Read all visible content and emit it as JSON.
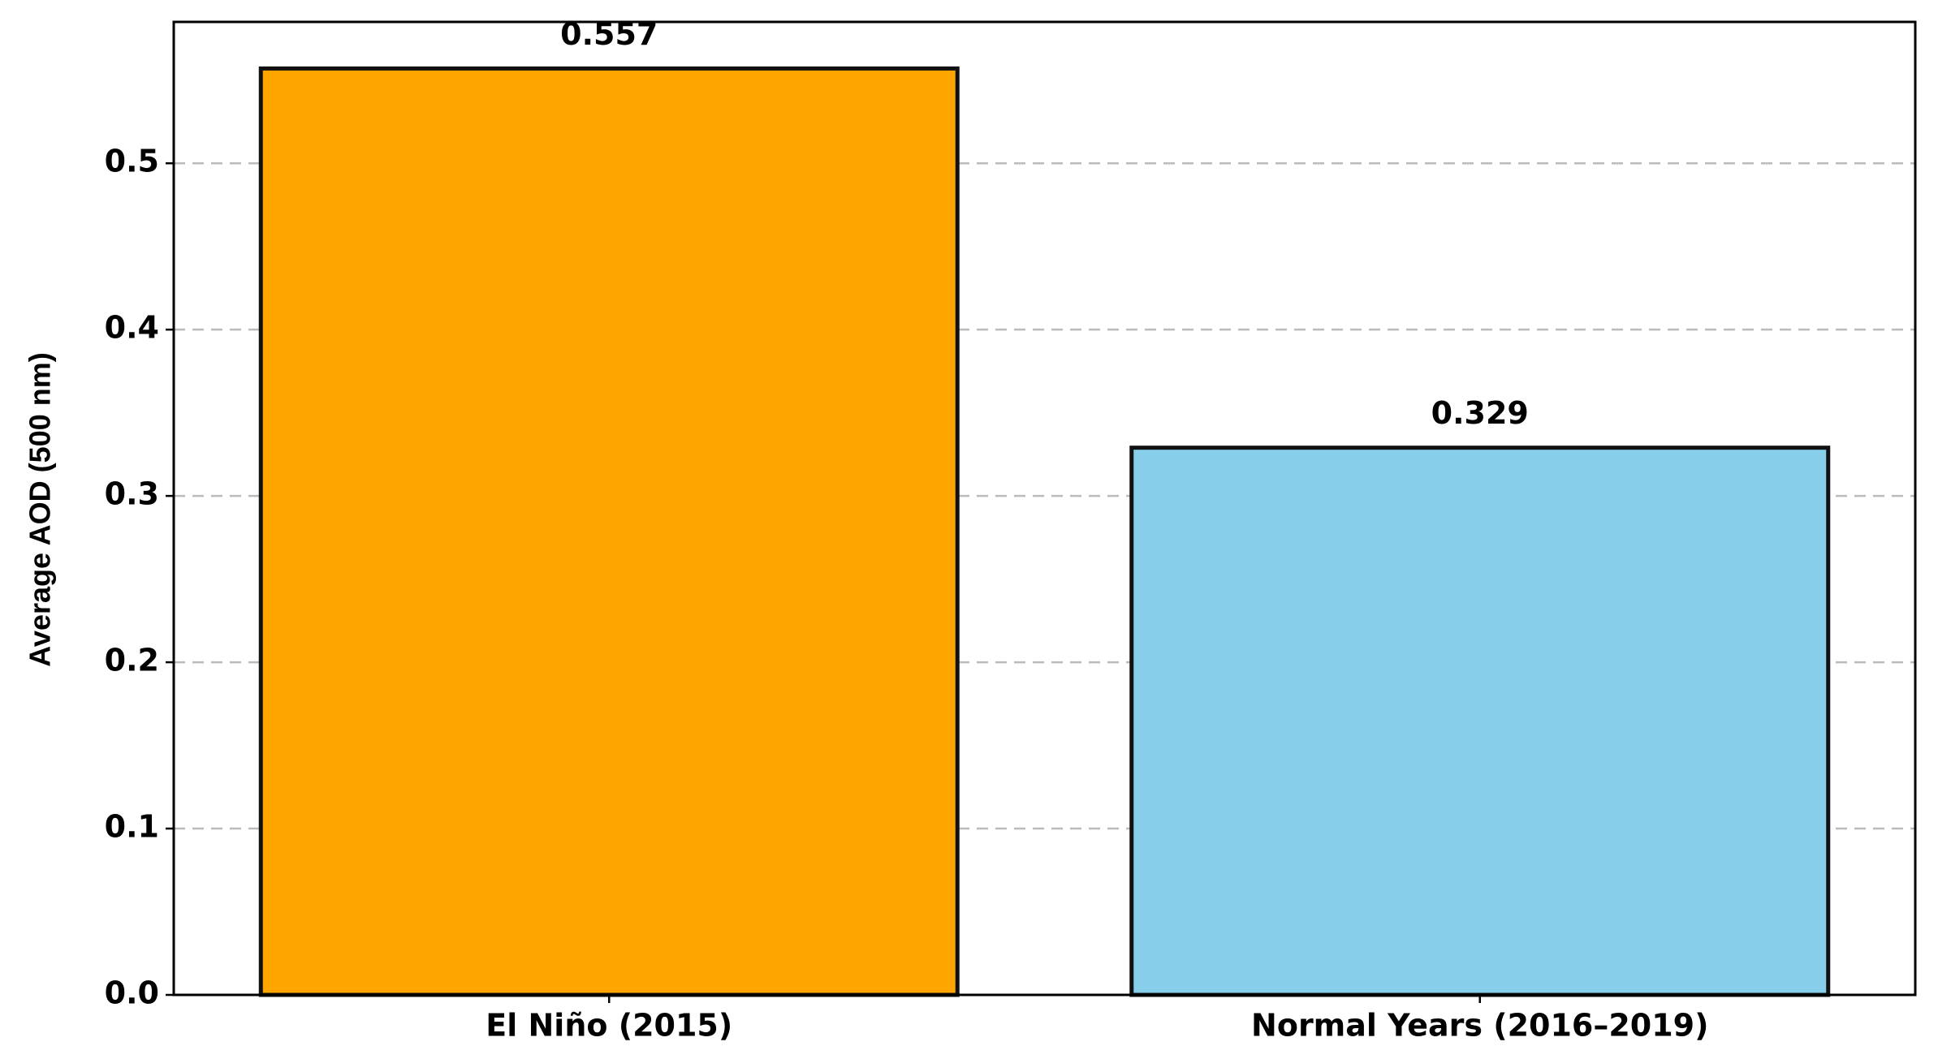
{
  "chart_data": {
    "type": "bar",
    "ylabel": "Average AOD (500 nm)",
    "categories": [
      "El Niño (2015)",
      "Normal Years (2016–2019)"
    ],
    "values": [
      0.557,
      0.329
    ],
    "colors": [
      "#ffa500",
      "#87ceeb"
    ],
    "ylim": [
      0,
      0.585
    ],
    "yticks": [
      0.0,
      0.1,
      0.2,
      0.3,
      0.4,
      0.5
    ],
    "yticklabels": [
      "0.0",
      "0.1",
      "0.2",
      "0.3",
      "0.4",
      "0.5"
    ],
    "grid": true
  }
}
